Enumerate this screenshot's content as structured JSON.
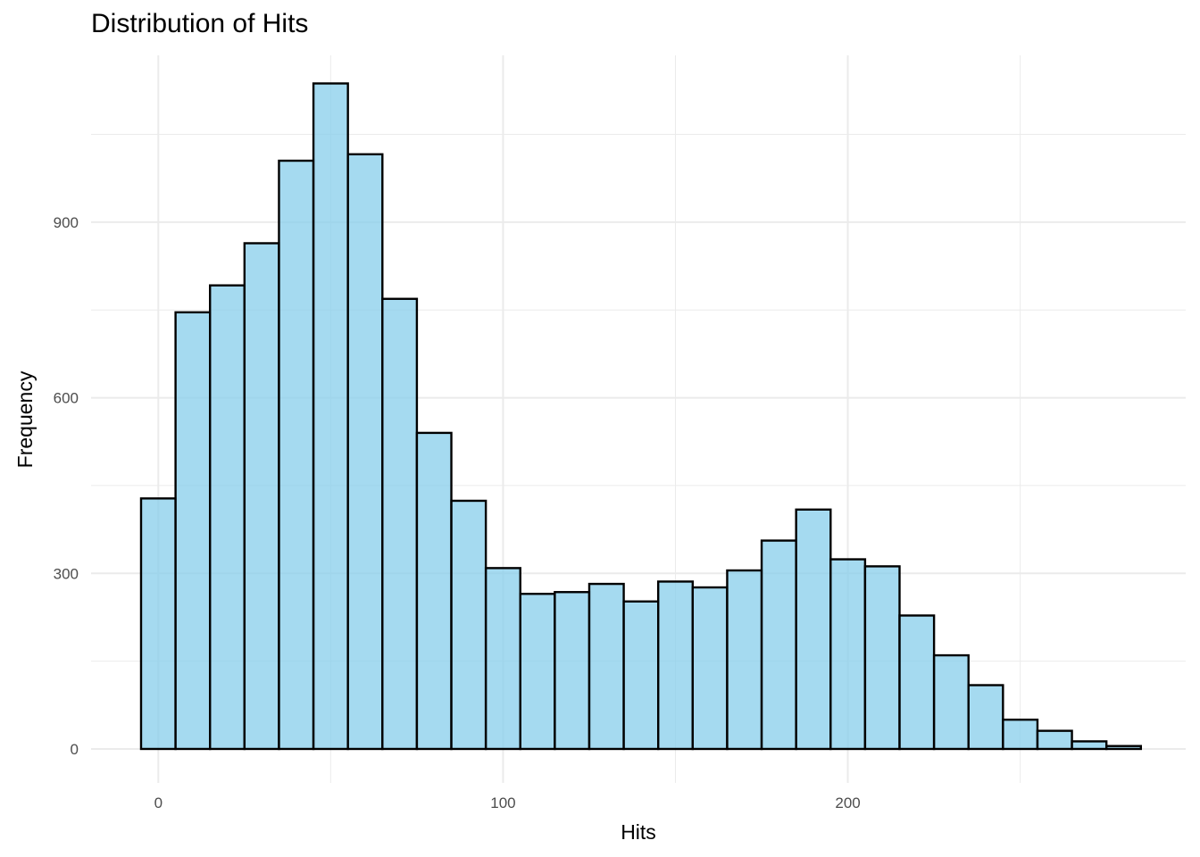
{
  "chart_data": {
    "type": "bar",
    "subtype": "histogram",
    "title": "Distribution of Hits",
    "xlabel": "Hits",
    "ylabel": "Frequency",
    "bin_width": 10,
    "bin_start": -5,
    "xlim": [
      -19.5,
      298
    ],
    "ylim": [
      -58,
      1185
    ],
    "x_ticks": [
      0,
      100,
      200
    ],
    "y_ticks": [
      0,
      300,
      600,
      900
    ],
    "x_tick_labels": [
      "0",
      "100",
      "200"
    ],
    "y_tick_labels": [
      "0",
      "300",
      "600",
      "900"
    ],
    "grid": true,
    "legend": "none",
    "values": [
      428,
      746,
      792,
      864,
      1005,
      1137,
      1016,
      769,
      540,
      424,
      309,
      265,
      268,
      282,
      252,
      286,
      276,
      305,
      356,
      409,
      324,
      312,
      228,
      160,
      109,
      50,
      31,
      13,
      5
    ],
    "fill_color": "#87CEEB",
    "outline_color": "#000000",
    "grid_color": "#EBEBEB"
  }
}
